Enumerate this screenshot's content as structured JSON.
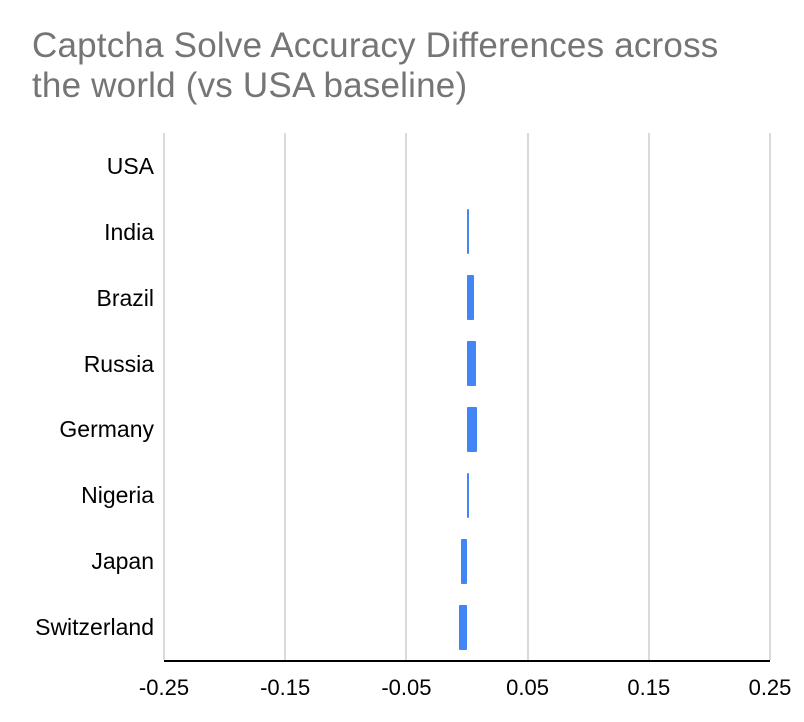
{
  "colors": {
    "bar": "#4285F4",
    "gridline": "#dadada",
    "axis_line": "#000000",
    "title_text": "#757575",
    "label_text": "#000000",
    "background": "#ffffff"
  },
  "chart_data": {
    "type": "bar",
    "orientation": "horizontal",
    "title": "Captcha Solve Accuracy Differences across the world (vs USA baseline)",
    "categories": [
      "USA",
      "India",
      "Brazil",
      "Russia",
      "Germany",
      "Nigeria",
      "Japan",
      "Switzerland"
    ],
    "values": [
      0,
      0.002,
      0.006,
      0.0075,
      0.008,
      0.002,
      -0.005,
      -0.007
    ],
    "xlabel": "",
    "ylabel": "",
    "xlim": [
      -0.25,
      0.25
    ],
    "x_ticks": [
      -0.25,
      -0.15,
      -0.05,
      0.05,
      0.15,
      0.25
    ],
    "x_tick_labels": [
      "-0.25",
      "-0.15",
      "-0.05",
      "0.05",
      "0.15",
      "0.25"
    ],
    "baseline": 0,
    "grid": true,
    "legend": "none"
  }
}
